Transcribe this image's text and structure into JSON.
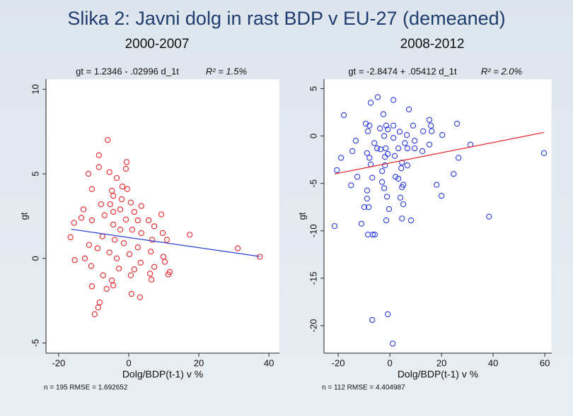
{
  "title": "Slika 2: Javni dolg in rast BDP v EU-27 (demeaned)",
  "chart_data": [
    {
      "type": "scatter",
      "subtitle": "2000-2007",
      "annotation": "gt = 1.2346 - .02996 d_1t",
      "r2": "R² = 1.5%",
      "x_label": "Dolg/BDP(t-1) v %",
      "y_label": "gt",
      "footer": "n = 195   RMSE = 1.692652",
      "xlim": [
        -23.6,
        43
      ],
      "ylim": [
        -5.6,
        10.6
      ],
      "xticks": [
        -20,
        0,
        20,
        40
      ],
      "yticks": [
        -5,
        0,
        5,
        10
      ],
      "series": [
        {
          "color": "#e8262a",
          "x": [
            -6,
            -8.5,
            -0.6,
            -8.5,
            -0.8,
            -5.5,
            -11.5,
            -3.4,
            -10.5,
            -4.8,
            -1.8,
            -0.4,
            -4.4,
            -2,
            0.6,
            -5.3,
            -7.9,
            -12.9,
            3.6,
            -4.4,
            -2.4,
            1.6,
            9.3,
            -6.9,
            -13.5,
            -10.5,
            -0.8,
            2.6,
            5.7,
            -15.6,
            -4.4,
            7.3,
            -2.4,
            1,
            3.6,
            17.4,
            9.7,
            -7.5,
            -16.6,
            -4,
            6.7,
            10.9,
            -11.3,
            -1.4,
            2.6,
            31.1,
            -8.9,
            -5.5,
            6.3,
            9.9,
            37.4,
            0.2,
            -12.5,
            -15.4,
            -3.4,
            3.4,
            10.3,
            -10.7,
            -2.8,
            7.3,
            1.6,
            11.7,
            11.3,
            6.1,
            -7.3,
            0.6,
            6.5,
            -4.8,
            -10.5,
            -6.3,
            -4.4,
            0.8,
            3.2,
            -8.3,
            -8.7,
            -9.7
          ],
          "values": [
            7.0,
            6.1,
            5.7,
            5.4,
            5.3,
            5.1,
            5.0,
            4.75,
            4.1,
            4.0,
            4.25,
            4.1,
            3.7,
            3.5,
            3.3,
            3.2,
            3.2,
            2.9,
            3.1,
            2.75,
            2.9,
            2.75,
            2.6,
            2.55,
            2.4,
            2.25,
            2.3,
            2.25,
            2.25,
            2.1,
            2.0,
            1.9,
            1.7,
            1.7,
            1.5,
            1.4,
            1.5,
            1.3,
            1.25,
            1.1,
            1.1,
            1.1,
            0.8,
            0.9,
            0.65,
            0.6,
            0.6,
            0.35,
            0.4,
            0.1,
            0.1,
            0.25,
            0,
            -0.1,
            0,
            -0.25,
            -0.2,
            -0.45,
            -0.6,
            -0.5,
            -0.65,
            -0.8,
            -0.95,
            -0.9,
            -1.0,
            -1.0,
            -1.25,
            -1.3,
            -1.65,
            -1.8,
            -1.6,
            -2.1,
            -2.3,
            -2.6,
            -2.9,
            -3.3
          ]
        }
      ],
      "fit": {
        "intercept": 1.2346,
        "slope": -0.02996,
        "x_range": [
          -16.4,
          37.4
        ],
        "color": "#2a3fd6"
      }
    },
    {
      "type": "scatter",
      "subtitle": "2008-2012",
      "annotation": "gt = -2.8474 + .05412 d_1t",
      "r2": "R² = 2.0%",
      "x_label": "Dolg/BDP(t-1) v %",
      "y_label": "gt",
      "footer": "n = 112   RMSE = 4.404987",
      "xlim": [
        -25.5,
        62.7
      ],
      "ylim": [
        -22.9,
        6.0
      ],
      "xticks": [
        -20,
        0,
        20,
        40,
        60
      ],
      "yticks": [
        -20,
        -15,
        -10,
        -5,
        0,
        5
      ],
      "series": [
        {
          "color": "#2c3be0",
          "x": [
            -4.7,
            1.4,
            -7.4,
            -17.8,
            -2.5,
            7.4,
            15.3,
            26,
            -9.3,
            -7.9,
            -1.4,
            1.4,
            9,
            15.9,
            -3.8,
            -0.8,
            -8.5,
            3.8,
            12.9,
            16.2,
            20.3,
            -2.2,
            6.6,
            1.4,
            9.6,
            5.8,
            -13.2,
            -6,
            -4.9,
            -3.6,
            -1.6,
            3.3,
            6.8,
            9.6,
            12.6,
            15.3,
            -14.5,
            31.2,
            -8.8,
            -0.8,
            1.9,
            -18.9,
            -7.9,
            -1.9,
            26.6,
            4.7,
            -7.4,
            -1.9,
            6.8,
            4.4,
            -20.5,
            -3,
            2.2,
            -12.6,
            24.7,
            -6.8,
            3.3,
            -3,
            18.1,
            5.2,
            -15,
            4.7,
            -2.2,
            -8.8,
            20,
            -1.1,
            -8.8,
            4.1,
            5.2,
            -9.9,
            -8.2,
            -0.3,
            4.7,
            8.2,
            -1.4,
            38.4,
            -21.4,
            -11,
            -8.5,
            -6.6,
            -5.8,
            -0.8,
            -6.8,
            1.1,
            59.7
          ],
          "values": [
            4.1,
            3.8,
            3.5,
            2.2,
            2.3,
            2.8,
            1.7,
            1.3,
            1.3,
            1.1,
            1.1,
            1.1,
            1.1,
            1.1,
            0.8,
            0.7,
            0.5,
            0.45,
            0.5,
            0.5,
            0.1,
            0,
            0.1,
            -0.2,
            -0.5,
            -0.75,
            -0.5,
            -0.75,
            -1.3,
            -1.4,
            -1.3,
            -1.3,
            -1.3,
            -1.3,
            -1.6,
            -0.9,
            -1.6,
            -0.9,
            -1.8,
            -1.9,
            -2.1,
            -2.3,
            -2.3,
            -2.2,
            -2.3,
            -2.8,
            -3.0,
            -3.1,
            -3.1,
            -3.4,
            -3.6,
            -3.7,
            -4.3,
            -4.3,
            -4.0,
            -4.4,
            -4.5,
            -4.85,
            -5.15,
            -5.15,
            -5.2,
            -5.4,
            -5.5,
            -5.75,
            -6.3,
            -6.4,
            -6.6,
            -6.5,
            -7.2,
            -7.5,
            -7.5,
            -7.7,
            -8.7,
            -8.9,
            -8.9,
            -8.5,
            -9.5,
            -9.25,
            -10.4,
            -10.4,
            -10.4,
            -18.8,
            -19.4,
            -21.9,
            -1.8
          ]
        }
      ],
      "fit": {
        "intercept": -2.8474,
        "slope": 0.05412,
        "x_range": [
          -21.4,
          59.7
        ],
        "color": "#e8262a"
      }
    }
  ]
}
